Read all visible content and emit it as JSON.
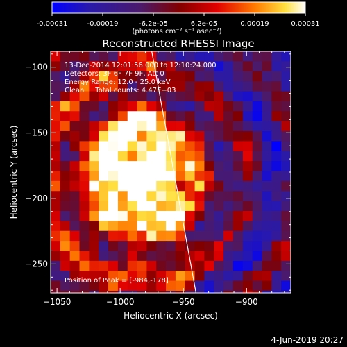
{
  "colorbar": {
    "ticks": [
      "-0.00031",
      "-0.00019",
      "-6.2e-05",
      "6.2e-05",
      "0.00019",
      "0.00031"
    ],
    "unit_label": "(photons cm⁻² s⁻¹ asec⁻²)",
    "range": [
      -0.00031,
      0.00031
    ],
    "colormap": [
      "#0000ff",
      "#4b0082",
      "#8b0000",
      "#ff0000",
      "#ff8c00",
      "#ffff80",
      "#ffffff"
    ]
  },
  "chart_data": {
    "type": "heatmap",
    "title": "Reconstructed RHESSI Image",
    "xlabel": "Heliocentric X (arcsec)",
    "ylabel": "Heliocentric Y (arcsec)",
    "xlim": [
      -1055,
      -865
    ],
    "ylim": [
      -272,
      -88
    ],
    "x_ticks": [
      -1050,
      -1000,
      -950,
      -900
    ],
    "x_tick_labels": [
      "−1050",
      "−1000",
      "−950",
      "−900"
    ],
    "y_ticks": [
      -100,
      -150,
      -200,
      -250
    ],
    "y_tick_labels": [
      "−100",
      "−150",
      "−200",
      "−250"
    ],
    "peak": [
      -984,
      -178
    ],
    "limb_line": [
      [
        -975,
        -88
      ],
      [
        -940,
        -272
      ]
    ],
    "annotations": [
      "13-Dec-2014 12:01:56.000 to 12:10:24.000",
      "Detectors: 3F 6F 7F 9F, Att 0",
      "Energy Range: 12.0 - 25.0 keV",
      "Clean     Total counts: 4.47E+03",
      "Position of Peak = [-984,-178]"
    ]
  },
  "footer_date": "4-Jun-2019 20:27"
}
